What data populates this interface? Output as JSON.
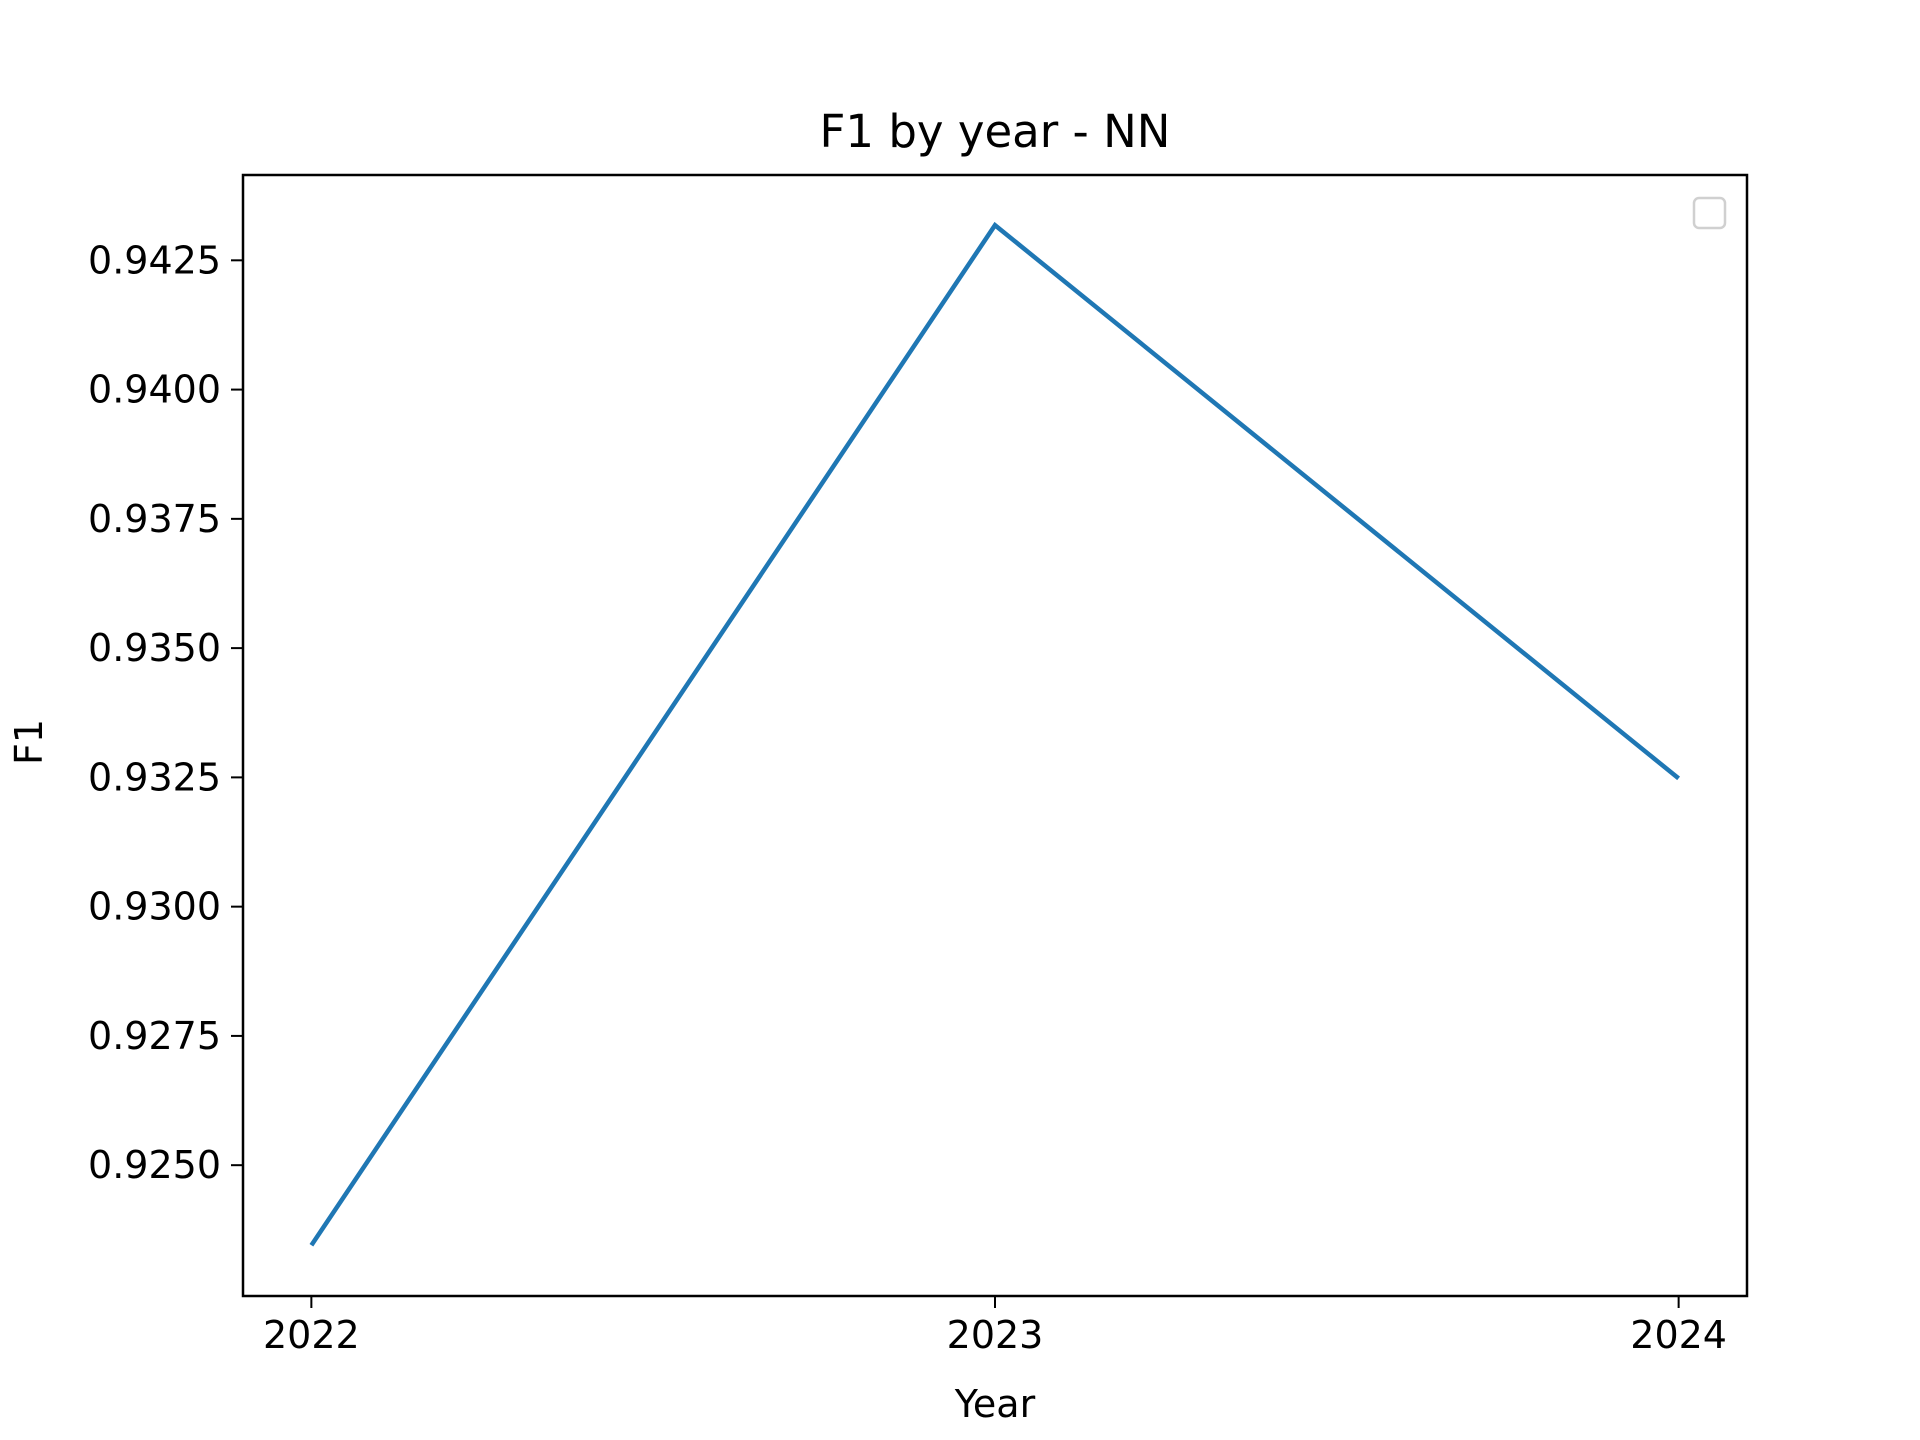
{
  "chart_data": {
    "type": "line",
    "title": "F1 by year - NN",
    "xlabel": "Year",
    "ylabel": "F1",
    "x": [
      2022,
      2023,
      2024
    ],
    "x_tick_labels": [
      "2022",
      "2023",
      "2024"
    ],
    "series": [
      {
        "values": [
          0.92345,
          0.94318,
          0.93248
        ],
        "color": "#1f77b4"
      }
    ],
    "xlim": [
      2021.9,
      2024.1
    ],
    "ylim": [
      0.92247,
      0.94415
    ],
    "y_ticks": [
      0.925,
      0.9275,
      0.93,
      0.9325,
      0.935,
      0.9375,
      0.94,
      0.9425
    ],
    "y_tick_labels": [
      "0.9250",
      "0.9275",
      "0.9300",
      "0.9325",
      "0.9350",
      "0.9375",
      "0.9400",
      "0.9425"
    ],
    "grid": false,
    "legend": "top-right",
    "legend_entries": []
  }
}
